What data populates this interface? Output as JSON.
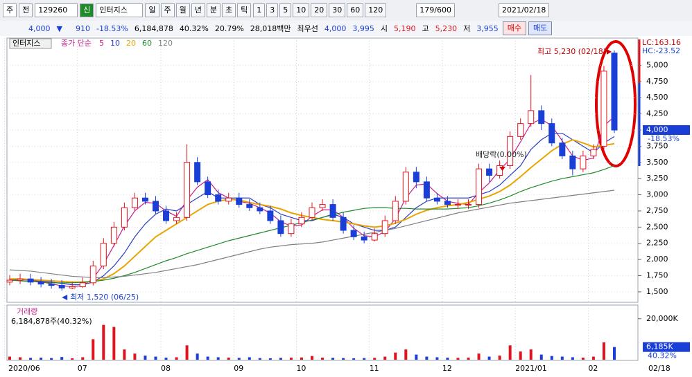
{
  "toolbar": {
    "market": "주",
    "prev": "전",
    "code": "129260",
    "badge": "신",
    "name": "인터지스",
    "periods": [
      "일",
      "주",
      "월",
      "년",
      "분",
      "초",
      "틱"
    ],
    "intervals": [
      "1",
      "3",
      "5",
      "10",
      "20",
      "30",
      "60",
      "120"
    ],
    "count": "179/600",
    "date": "2021/02/18"
  },
  "quote": {
    "price": "4,000",
    "arrow": "▼",
    "change": "910",
    "change_pct": "-18.53%",
    "volume": "6,184,878",
    "volume_ratio": "40.32%",
    "turnover": "20.79%",
    "amount": "28,018백만",
    "best_label": "최우선",
    "ask": "4,000",
    "bid": "3,995",
    "open_label": "시",
    "open": "5,190",
    "high_label": "고",
    "high": "5,230",
    "low_label": "저",
    "low": "3,955",
    "buy": "매수",
    "sell": "매도"
  },
  "chart_data": {
    "type": "candlestick",
    "title": "인터지스",
    "ma_label": "종가 단순",
    "categories": [
      "2020/06",
      null,
      null,
      null,
      null,
      null,
      null,
      "07",
      null,
      null,
      null,
      null,
      null,
      null,
      null,
      "08",
      null,
      null,
      null,
      null,
      null,
      null,
      "09",
      null,
      null,
      null,
      null,
      null,
      "10",
      null,
      null,
      null,
      null,
      null,
      null,
      "11",
      null,
      null,
      null,
      null,
      null,
      null,
      "12",
      null,
      null,
      null,
      null,
      null,
      null,
      "2021/01",
      null,
      null,
      null,
      null,
      null,
      null,
      "02",
      null,
      null
    ],
    "last_date": "02/18",
    "open": [
      1650,
      1680,
      1700,
      1650,
      1620,
      1600,
      1560,
      1580,
      1640,
      1900,
      2250,
      2500,
      2800,
      2950,
      2900,
      2750,
      2600,
      2650,
      3500,
      3200,
      3000,
      2900,
      2950,
      2850,
      2800,
      2750,
      2600,
      2400,
      2550,
      2650,
      2800,
      2850,
      2650,
      2450,
      2350,
      2300,
      2400,
      2600,
      2900,
      3350,
      3200,
      2950,
      2900,
      2850,
      2850,
      2850,
      3400,
      3300,
      3450,
      3900,
      4100,
      4300,
      4100,
      3800,
      3600,
      3400,
      3600,
      3750,
      5190
    ],
    "high": [
      1760,
      1780,
      1780,
      1730,
      1700,
      1680,
      1660,
      1720,
      1980,
      2330,
      2580,
      2880,
      3030,
      3030,
      2980,
      2830,
      2730,
      3780,
      3580,
      3280,
      3080,
      3030,
      3030,
      2930,
      2880,
      2830,
      2680,
      2630,
      2730,
      2880,
      2930,
      2930,
      2730,
      2530,
      2430,
      2480,
      2680,
      2980,
      3430,
      3430,
      3280,
      3030,
      2980,
      2930,
      2930,
      3480,
      3480,
      3530,
      3980,
      4180,
      4850,
      4380,
      4180,
      3880,
      3680,
      3680,
      3780,
      4990,
      5230
    ],
    "low": [
      1600,
      1620,
      1600,
      1570,
      1550,
      1520,
      1540,
      1560,
      1600,
      1850,
      2200,
      2450,
      2750,
      2850,
      2700,
      2550,
      2550,
      2600,
      3150,
      2950,
      2850,
      2850,
      2800,
      2750,
      2700,
      2550,
      2350,
      2350,
      2500,
      2600,
      2750,
      2600,
      2400,
      2300,
      2250,
      2280,
      2350,
      2550,
      2850,
      3100,
      2900,
      2850,
      2800,
      2780,
      2780,
      2800,
      3200,
      3250,
      3400,
      3850,
      4050,
      4000,
      3750,
      3550,
      3300,
      3350,
      3550,
      3700,
      3955
    ],
    "close": [
      1680,
      1700,
      1650,
      1620,
      1600,
      1560,
      1580,
      1640,
      1900,
      2250,
      2500,
      2800,
      2950,
      2900,
      2750,
      2600,
      2650,
      3500,
      3200,
      3000,
      2900,
      2950,
      2850,
      2800,
      2750,
      2600,
      2400,
      2550,
      2650,
      2800,
      2850,
      2650,
      2450,
      2350,
      2300,
      2400,
      2600,
      2900,
      3350,
      3200,
      2950,
      2900,
      2850,
      2850,
      2850,
      3400,
      3300,
      3450,
      3900,
      4100,
      4300,
      4100,
      3800,
      3600,
      3400,
      3600,
      3700,
      4910,
      4000
    ],
    "up_color": "#e0141e",
    "down_color": "#1a3fd6",
    "moving_averages": [
      {
        "name": "5",
        "color": "#c8208c",
        "values": [
          1680,
          1690,
          1677,
          1657,
          1623,
          1593,
          1580,
          1593,
          1707,
          1930,
          2217,
          2517,
          2750,
          2883,
          2867,
          2750,
          2667,
          2917,
          3117,
          3233,
          3033,
          2950,
          2900,
          2867,
          2800,
          2717,
          2583,
          2517,
          2533,
          2667,
          2767,
          2767,
          2650,
          2483,
          2367,
          2350,
          2433,
          2633,
          2950,
          3150,
          3167,
          3017,
          2900,
          2867,
          2850,
          3033,
          3183,
          3383,
          3550,
          3817,
          4100,
          4167,
          4067,
          3833,
          3600,
          3533,
          3567,
          4070,
          4203
        ]
      },
      {
        "name": "10",
        "color": "#2a3cc8",
        "values": [
          1690,
          1690,
          1680,
          1670,
          1650,
          1630,
          1610,
          1610,
          1650,
          1750,
          1900,
          2100,
          2350,
          2550,
          2700,
          2780,
          2750,
          2850,
          2950,
          3050,
          2950,
          2950,
          2950,
          2950,
          2850,
          2800,
          2700,
          2650,
          2600,
          2600,
          2650,
          2700,
          2650,
          2550,
          2500,
          2450,
          2450,
          2500,
          2650,
          2800,
          2900,
          2950,
          2950,
          2950,
          2950,
          3000,
          3050,
          3150,
          3300,
          3450,
          3700,
          3850,
          3950,
          3950,
          3850,
          3750,
          3650,
          3800,
          3900
        ]
      },
      {
        "name": "20",
        "color": "#e8a400",
        "values": [
          1700,
          1700,
          1690,
          1680,
          1670,
          1660,
          1650,
          1650,
          1660,
          1700,
          1780,
          1900,
          2050,
          2200,
          2350,
          2450,
          2550,
          2650,
          2750,
          2850,
          2900,
          2930,
          2920,
          2880,
          2850,
          2820,
          2780,
          2720,
          2680,
          2650,
          2620,
          2600,
          2580,
          2550,
          2520,
          2500,
          2520,
          2560,
          2620,
          2700,
          2760,
          2800,
          2830,
          2850,
          2880,
          2930,
          2980,
          3050,
          3150,
          3280,
          3420,
          3550,
          3680,
          3780,
          3850,
          3800,
          3740,
          3760,
          3790
        ]
      },
      {
        "name": "60",
        "color": "#1f8a2a",
        "values": [
          1680,
          1670,
          1660,
          1650,
          1640,
          1640,
          1640,
          1650,
          1660,
          1680,
          1710,
          1750,
          1800,
          1860,
          1920,
          1980,
          2030,
          2090,
          2140,
          2190,
          2240,
          2290,
          2330,
          2370,
          2410,
          2450,
          2490,
          2530,
          2570,
          2610,
          2650,
          2690,
          2730,
          2760,
          2790,
          2800,
          2800,
          2790,
          2790,
          2780,
          2780,
          2780,
          2780,
          2790,
          2800,
          2830,
          2870,
          2920,
          2980,
          3050,
          3110,
          3160,
          3210,
          3250,
          3280,
          3310,
          3340,
          3390,
          3450
        ]
      },
      {
        "name": "120",
        "color": "#808080",
        "values": [
          1840,
          1830,
          1820,
          1800,
          1780,
          1760,
          1740,
          1730,
          1720,
          1720,
          1730,
          1740,
          1760,
          1780,
          1800,
          1830,
          1860,
          1890,
          1920,
          1960,
          2000,
          2040,
          2080,
          2120,
          2160,
          2190,
          2210,
          2230,
          2240,
          2250,
          2270,
          2300,
          2330,
          2360,
          2390,
          2420,
          2450,
          2480,
          2520,
          2560,
          2600,
          2640,
          2680,
          2720,
          2750,
          2780,
          2810,
          2840,
          2870,
          2890,
          2910,
          2930,
          2950,
          2970,
          2990,
          3010,
          3030,
          3050,
          3070
        ]
      }
    ],
    "ylim": [
      1360,
      5400
    ],
    "yticks": [
      {
        "value": 1500,
        "label": "1,500"
      },
      {
        "value": 1750,
        "label": "1,750"
      },
      {
        "value": 2000,
        "label": "2,000"
      },
      {
        "value": 2250,
        "label": "2,250"
      },
      {
        "value": 2500,
        "label": "2,500"
      },
      {
        "value": 2750,
        "label": "2,750"
      },
      {
        "value": 3000,
        "label": "3,000"
      },
      {
        "value": 3250,
        "label": "3,250"
      },
      {
        "value": 3500,
        "label": "3,500"
      },
      {
        "value": 3750,
        "label": "3,750"
      },
      {
        "value": 4000,
        "label": "4,000"
      },
      {
        "value": 4250,
        "label": "4,250"
      },
      {
        "value": 4500,
        "label": "4,500"
      },
      {
        "value": 4750,
        "label": "4,750"
      },
      {
        "value": 5000,
        "label": "5,000"
      }
    ],
    "grid": true,
    "high_label": "최고 5,230 (02/18)",
    "low_label": "최저 1,520 (06/25)",
    "dividend_label": "배당락(0.00%)",
    "lc": "LC:163.16",
    "hc": "HC:-23.52",
    "current": "4,000",
    "current_pct": "-18.53%",
    "volume": {
      "title": "거래량",
      "legend": "6,184,878주(40.32%)",
      "last_label": "6,185K",
      "last_pct": "40.32%",
      "values": [
        1500000,
        1200000,
        900000,
        1000000,
        800000,
        1300000,
        700000,
        1200000,
        10000000,
        17000000,
        16000000,
        5000000,
        3000000,
        2000000,
        1500000,
        1000000,
        1200000,
        7000000,
        3000000,
        1500000,
        1200000,
        1000000,
        900000,
        1200000,
        800000,
        700000,
        900000,
        1000000,
        1100000,
        1800000,
        1000000,
        900000,
        800000,
        700000,
        800000,
        900000,
        1500000,
        3500000,
        5000000,
        2500000,
        1500000,
        1200000,
        1000000,
        900000,
        1000000,
        3000000,
        1500000,
        2000000,
        7000000,
        4000000,
        5000000,
        2500000,
        1800000,
        1500000,
        1200000,
        1000000,
        1500000,
        8500000,
        6184878
      ],
      "ylim": [
        0,
        26000000
      ],
      "yticks": [
        {
          "value": 20000000,
          "label": "20,000K"
        }
      ]
    }
  }
}
